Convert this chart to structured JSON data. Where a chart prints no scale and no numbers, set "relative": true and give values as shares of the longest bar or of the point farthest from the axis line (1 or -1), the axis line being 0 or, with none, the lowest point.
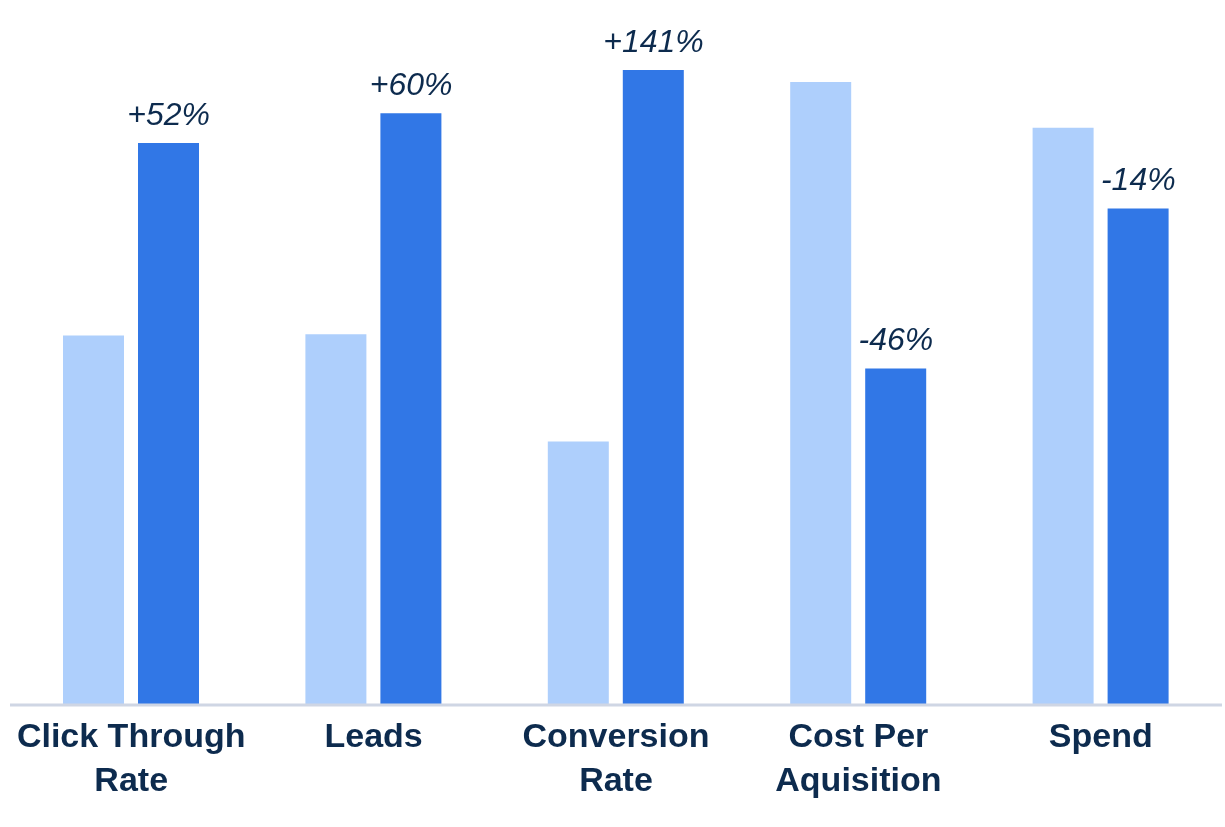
{
  "chart_data": {
    "type": "bar",
    "relative": true,
    "categories": [
      "Click Through Rate",
      "Leads",
      "Conversion Rate",
      "Cost Per Aquisition",
      "Spend"
    ],
    "series": [
      {
        "color": "#aecffc",
        "values": [
          0.582,
          0.584,
          0.415,
          0.981,
          0.909
        ]
      },
      {
        "color": "#3177e6",
        "values": [
          0.885,
          0.932,
          1,
          0.53,
          0.782
        ]
      }
    ],
    "annotations": [
      "+52%",
      "+60%",
      "+141%",
      "-46%",
      "-14%"
    ],
    "grid": false,
    "legend": false
  }
}
